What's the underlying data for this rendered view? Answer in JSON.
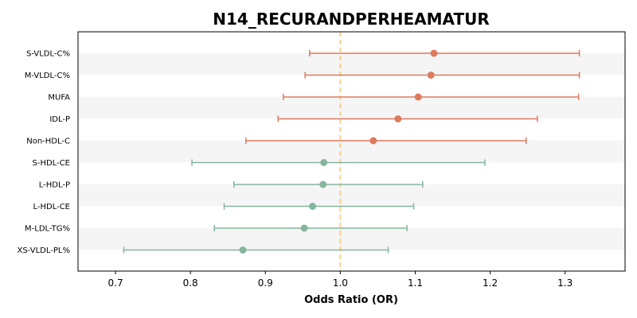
{
  "chart_data": {
    "type": "forest",
    "title": "N14_RECURANDPERHEAMATUR",
    "xlabel": "Odds Ratio (OR)",
    "xlim": [
      0.65,
      1.38
    ],
    "x_ticks": [
      0.7,
      0.8,
      0.9,
      1.0,
      1.1,
      1.2,
      1.3
    ],
    "x_tick_labels": [
      "0.7",
      "0.8",
      "0.9",
      "1.0",
      "1.1",
      "1.2",
      "1.3"
    ],
    "reference_line": 1.0,
    "reference_color": "#f5c77e",
    "colors": {
      "above": "#dd7a5e",
      "below": "#86b59e",
      "stripe": "#f5f5f5"
    },
    "rows": [
      {
        "label": "S-VLDL-C%",
        "or": 1.125,
        "lower": 0.959,
        "upper": 1.319
      },
      {
        "label": "M-VLDL-C%",
        "or": 1.121,
        "lower": 0.953,
        "upper": 1.319
      },
      {
        "label": "MUFA",
        "or": 1.104,
        "lower": 0.924,
        "upper": 1.318
      },
      {
        "label": "IDL-P",
        "or": 1.077,
        "lower": 0.917,
        "upper": 1.263
      },
      {
        "label": "Non-HDL-C",
        "or": 1.044,
        "lower": 0.874,
        "upper": 1.248
      },
      {
        "label": "S-HDL-CE",
        "or": 0.978,
        "lower": 0.802,
        "upper": 1.193
      },
      {
        "label": "L-HDL-P",
        "or": 0.977,
        "lower": 0.858,
        "upper": 1.11
      },
      {
        "label": "L-HDL-CE",
        "or": 0.963,
        "lower": 0.845,
        "upper": 1.098
      },
      {
        "label": "M-LDL-TG%",
        "or": 0.952,
        "lower": 0.832,
        "upper": 1.089
      },
      {
        "label": "XS-VLDL-PL%",
        "or": 0.87,
        "lower": 0.711,
        "upper": 1.064
      }
    ]
  }
}
